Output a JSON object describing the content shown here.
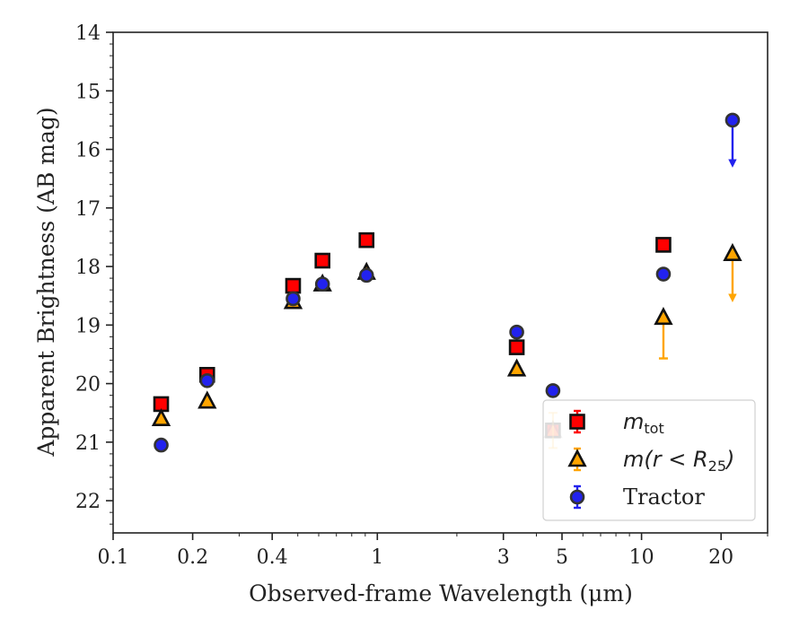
{
  "chart_data": {
    "type": "scatter",
    "xlabel": "Observed-frame Wavelength (μm)",
    "ylabel": "Apparent Brightness (AB mag)",
    "xscale": "log",
    "xlim": [
      0.1,
      30
    ],
    "ylim": [
      22.55,
      14
    ],
    "y_inverted": true,
    "x_ticks": [
      0.1,
      0.2,
      0.4,
      1,
      3,
      5,
      10,
      20
    ],
    "x_tick_labels": [
      "0.1",
      "0.2",
      "0.4",
      "1",
      "3",
      "5",
      "10",
      "20"
    ],
    "y_ticks": [
      14,
      15,
      16,
      17,
      18,
      19,
      20,
      21,
      22
    ],
    "y_tick_labels": [
      "14",
      "15",
      "16",
      "17",
      "18",
      "19",
      "20",
      "21",
      "22"
    ],
    "grid": false,
    "legend_position": "bottom-right",
    "legend": [
      {
        "main": "m",
        "sub": "tot",
        "suffix": "",
        "series": "mtot"
      },
      {
        "main": "m(r < R",
        "sub": "25",
        "suffix": ")",
        "series": "mr25"
      },
      {
        "main": "Tractor",
        "sub": "",
        "suffix": "",
        "series": "tractor"
      }
    ],
    "series": [
      {
        "key": "mtot",
        "marker": "square",
        "color": "#ff0000",
        "edge_color": "#111111",
        "points": [
          {
            "x": 0.152,
            "y": 20.35
          },
          {
            "x": 0.227,
            "y": 19.85
          },
          {
            "x": 0.48,
            "y": 18.33
          },
          {
            "x": 0.62,
            "y": 17.9
          },
          {
            "x": 0.91,
            "y": 17.55
          },
          {
            "x": 3.37,
            "y": 19.38
          },
          {
            "x": 4.62,
            "y": 20.8
          },
          {
            "x": 12.1,
            "y": 17.63
          }
        ]
      },
      {
        "key": "mr25",
        "marker": "triangle",
        "color": "#ffa500",
        "edge_color": "#111111",
        "points": [
          {
            "x": 0.152,
            "y": 20.6
          },
          {
            "x": 0.227,
            "y": 20.3
          },
          {
            "x": 0.48,
            "y": 18.6
          },
          {
            "x": 0.62,
            "y": 18.3
          },
          {
            "x": 0.91,
            "y": 18.1
          },
          {
            "x": 3.37,
            "y": 19.75
          },
          {
            "x": 4.62,
            "y": 20.8,
            "err": 0.3
          },
          {
            "x": 12.1,
            "y": 18.87,
            "err_lower": 0.7
          },
          {
            "x": 22.1,
            "y": 17.78,
            "upper_limit": 18.6
          }
        ]
      },
      {
        "key": "tractor",
        "marker": "circle",
        "color": "#2222ee",
        "edge_color": "#333333",
        "points": [
          {
            "x": 0.152,
            "y": 21.05
          },
          {
            "x": 0.227,
            "y": 19.95
          },
          {
            "x": 0.48,
            "y": 18.55
          },
          {
            "x": 0.62,
            "y": 18.3
          },
          {
            "x": 0.91,
            "y": 18.15
          },
          {
            "x": 3.37,
            "y": 19.12
          },
          {
            "x": 4.62,
            "y": 20.12
          },
          {
            "x": 12.1,
            "y": 18.13
          },
          {
            "x": 22.1,
            "y": 15.5,
            "upper_limit": 16.3
          }
        ]
      }
    ]
  }
}
